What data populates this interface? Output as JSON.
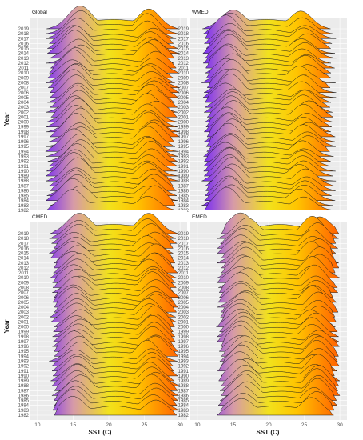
{
  "chart_data": {
    "type": "ridgeline",
    "xlabel": "SST (C)",
    "ylabel": "Year",
    "xlim": [
      9,
      31
    ],
    "x_ticks": [
      10,
      15,
      20,
      25,
      30
    ],
    "years": [
      1982,
      1983,
      1984,
      1985,
      1986,
      1987,
      1988,
      1989,
      1990,
      1991,
      1992,
      1993,
      1994,
      1995,
      1996,
      1997,
      1998,
      1999,
      2000,
      2001,
      2002,
      2003,
      2004,
      2005,
      2006,
      2007,
      2008,
      2009,
      2010,
      2011,
      2012,
      2013,
      2014,
      2015,
      2016,
      2017,
      2018,
      2019
    ],
    "fill_gradient": {
      "variable": "SST (C)",
      "stops": [
        {
          "value": 11,
          "color": "#7b2ff2"
        },
        {
          "value": 15,
          "color": "#d69aa8"
        },
        {
          "value": 20,
          "color": "#f2e21c"
        },
        {
          "value": 24,
          "color": "#ffc400"
        },
        {
          "value": 30,
          "color": "#ff5e00"
        }
      ]
    },
    "panels": [
      {
        "name": "Global",
        "min_sst": 11.5,
        "max_sst": 29.5,
        "cold_peak": 15.5,
        "warm_peak": 26.0,
        "cold_weight": 1.0,
        "warm_weight": 0.85
      },
      {
        "name": "WMED",
        "min_sst": 11.0,
        "max_sst": 29.0,
        "cold_peak": 14.5,
        "warm_peak": 25.0,
        "cold_weight": 1.0,
        "warm_weight": 0.75
      },
      {
        "name": "CMED",
        "min_sst": 12.0,
        "max_sst": 29.5,
        "cold_peak": 15.5,
        "warm_peak": 26.0,
        "cold_weight": 0.9,
        "warm_weight": 0.9
      },
      {
        "name": "EMED",
        "min_sst": 13.0,
        "max_sst": 29.5,
        "cold_peak": 16.5,
        "warm_peak": 26.5,
        "cold_weight": 0.9,
        "warm_weight": 0.95
      }
    ]
  }
}
